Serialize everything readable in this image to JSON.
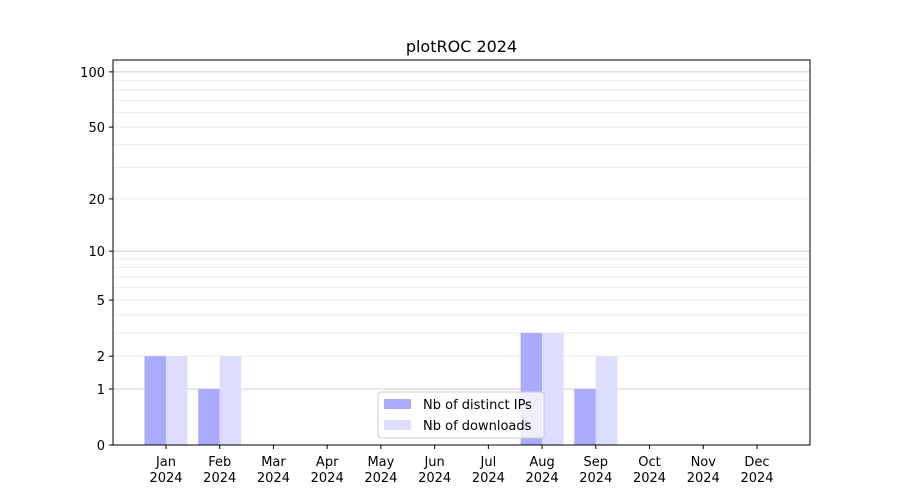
{
  "chart_data": {
    "type": "bar",
    "title": "plotROC 2024",
    "xlabel": "",
    "ylabel": "",
    "y_scale": "log10(1+y)",
    "ylim": [
      0,
      116
    ],
    "y_ticks": [
      0,
      1,
      2,
      5,
      10,
      20,
      50,
      100
    ],
    "y_tick_labels": [
      "0",
      "1",
      "2",
      "5",
      "10",
      "20",
      "50",
      "100"
    ],
    "grid": "horizontal (major and minor)",
    "categories": [
      "Jan\n2024",
      "Feb\n2024",
      "Mar\n2024",
      "Apr\n2024",
      "May\n2024",
      "Jun\n2024",
      "Jul\n2024",
      "Aug\n2024",
      "Sep\n2024",
      "Oct\n2024",
      "Nov\n2024",
      "Dec\n2024"
    ],
    "series": [
      {
        "name": "Nb of distinct IPs",
        "color": "#aaaaff",
        "values": [
          2,
          1,
          0,
          0,
          0,
          0,
          0,
          3,
          1,
          0,
          0,
          0
        ]
      },
      {
        "name": "Nb of downloads",
        "color": "#ddddff",
        "values": [
          2,
          2,
          0,
          0,
          0,
          0,
          0,
          3,
          2,
          0,
          0,
          0
        ]
      }
    ],
    "legend": "bottom-center"
  }
}
